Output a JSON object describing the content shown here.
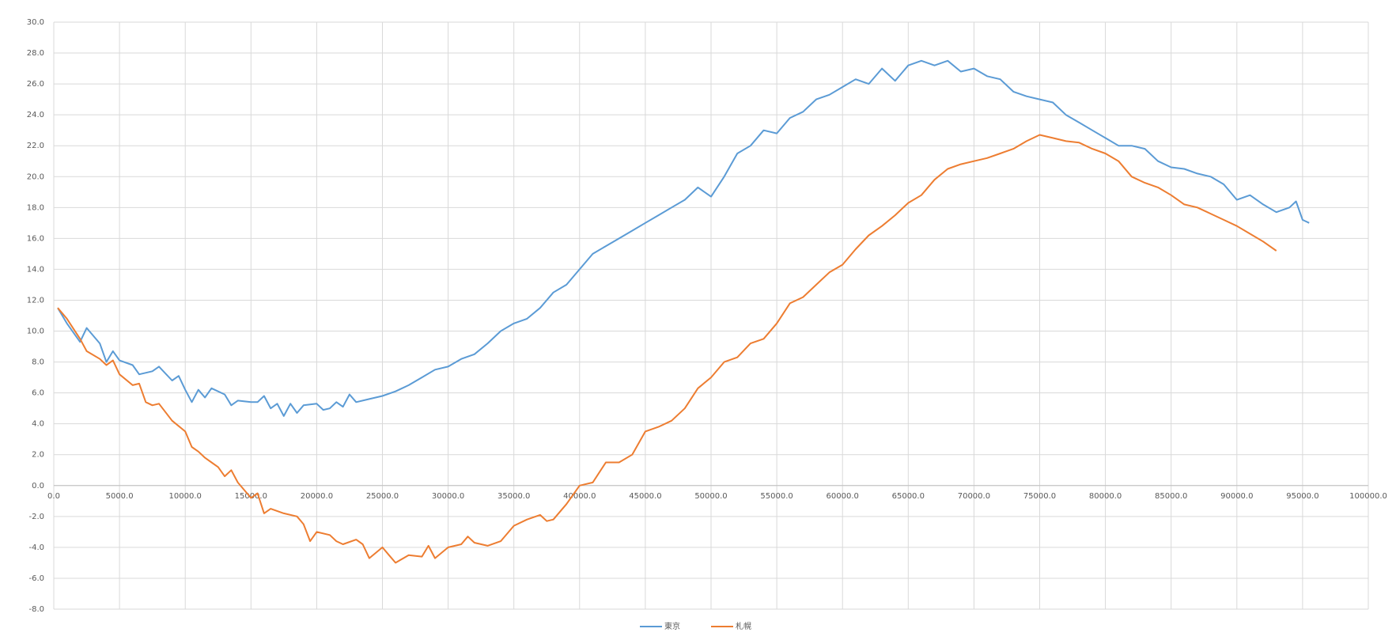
{
  "chart_data": {
    "type": "line",
    "xlim": [
      0,
      100000
    ],
    "ylim": [
      -8,
      30
    ],
    "xticks": [
      {
        "value": 0,
        "label": "0.0"
      },
      {
        "value": 5000,
        "label": "5000.0"
      },
      {
        "value": 10000,
        "label": "10000.0"
      },
      {
        "value": 15000,
        "label": "15000.0"
      },
      {
        "value": 20000,
        "label": "20000.0"
      },
      {
        "value": 25000,
        "label": "25000.0"
      },
      {
        "value": 30000,
        "label": "30000.0"
      },
      {
        "value": 35000,
        "label": "35000.0"
      },
      {
        "value": 40000,
        "label": "40000.0"
      },
      {
        "value": 45000,
        "label": "45000.0"
      },
      {
        "value": 50000,
        "label": "50000.0"
      },
      {
        "value": 55000,
        "label": "55000.0"
      },
      {
        "value": 60000,
        "label": "60000.0"
      },
      {
        "value": 65000,
        "label": "65000.0"
      },
      {
        "value": 70000,
        "label": "70000.0"
      },
      {
        "value": 75000,
        "label": "75000.0"
      },
      {
        "value": 80000,
        "label": "80000.0"
      },
      {
        "value": 85000,
        "label": "85000.0"
      },
      {
        "value": 90000,
        "label": "90000.0"
      },
      {
        "value": 95000,
        "label": "95000.0"
      },
      {
        "value": 100000,
        "label": "100000.0"
      }
    ],
    "yticks": [
      {
        "value": -8,
        "label": "-8.0"
      },
      {
        "value": -6,
        "label": "-6.0"
      },
      {
        "value": -4,
        "label": "-4.0"
      },
      {
        "value": -2,
        "label": "-2.0"
      },
      {
        "value": 0,
        "label": "0.0"
      },
      {
        "value": 2,
        "label": "2.0"
      },
      {
        "value": 4,
        "label": "4.0"
      },
      {
        "value": 6,
        "label": "6.0"
      },
      {
        "value": 8,
        "label": "8.0"
      },
      {
        "value": 10,
        "label": "10.0"
      },
      {
        "value": 12,
        "label": "12.0"
      },
      {
        "value": 14,
        "label": "14.0"
      },
      {
        "value": 16,
        "label": "16.0"
      },
      {
        "value": 18,
        "label": "18.0"
      },
      {
        "value": 20,
        "label": "20.0"
      },
      {
        "value": 22,
        "label": "22.0"
      },
      {
        "value": 24,
        "label": "24.0"
      },
      {
        "value": 26,
        "label": "26.0"
      },
      {
        "value": 28,
        "label": "28.0"
      },
      {
        "value": 30,
        "label": "30.0"
      }
    ],
    "grid": true,
    "legend": "bottom",
    "series": [
      {
        "name": "東京",
        "color": "#5b9bd5",
        "x": [
          300,
          1000,
          2000,
          2500,
          3500,
          4000,
          4500,
          5000,
          6000,
          6500,
          7500,
          8000,
          9000,
          9500,
          10000,
          10500,
          11000,
          11500,
          12000,
          13000,
          13500,
          14000,
          15000,
          15500,
          16000,
          16500,
          17000,
          17500,
          18000,
          18500,
          19000,
          20000,
          20500,
          21000,
          21500,
          22000,
          22500,
          23000,
          24000,
          25000,
          26000,
          27000,
          28000,
          29000,
          30000,
          31000,
          32000,
          33000,
          34000,
          35000,
          36000,
          37000,
          38000,
          39000,
          40000,
          41000,
          42000,
          43000,
          44000,
          45000,
          46000,
          47000,
          48000,
          49000,
          50000,
          51000,
          52000,
          53000,
          54000,
          55000,
          56000,
          57000,
          58000,
          59000,
          60000,
          61000,
          62000,
          63000,
          64000,
          65000,
          66000,
          67000,
          68000,
          69000,
          70000,
          71000,
          72000,
          73000,
          74000,
          75000,
          76000,
          77000,
          78000,
          79000,
          80000,
          81000,
          82000,
          83000,
          84000,
          85000,
          86000,
          87000,
          88000,
          89000,
          90000,
          91000,
          92000,
          93000,
          94000,
          94500,
          95000,
          95500
        ],
        "values": [
          11.5,
          10.5,
          9.3,
          10.2,
          9.2,
          8.0,
          8.7,
          8.1,
          7.8,
          7.2,
          7.4,
          7.7,
          6.8,
          7.1,
          6.2,
          5.4,
          6.2,
          5.7,
          6.3,
          5.9,
          5.2,
          5.5,
          5.4,
          5.4,
          5.8,
          5.0,
          5.3,
          4.5,
          5.3,
          4.7,
          5.2,
          5.3,
          4.9,
          5.0,
          5.4,
          5.1,
          5.9,
          5.4,
          5.6,
          5.8,
          6.1,
          6.5,
          7.0,
          7.5,
          7.7,
          8.2,
          8.5,
          9.2,
          10.0,
          10.5,
          10.8,
          11.5,
          12.5,
          13.0,
          14.0,
          15.0,
          15.5,
          16.0,
          16.5,
          17.0,
          17.5,
          18.0,
          18.5,
          19.3,
          18.7,
          20.0,
          21.5,
          22.0,
          23.0,
          22.8,
          23.8,
          24.2,
          25.0,
          25.3,
          25.8,
          26.3,
          26.0,
          27.0,
          26.2,
          27.2,
          27.5,
          27.2,
          27.5,
          26.8,
          27.0,
          26.5,
          26.3,
          25.5,
          25.2,
          25.0,
          24.8,
          24.0,
          23.5,
          23.0,
          22.5,
          22.0,
          22.0,
          21.8,
          21.0,
          20.6,
          20.5,
          20.2,
          20.0,
          19.5,
          18.5,
          18.8,
          18.2,
          17.7,
          18.0,
          18.4,
          17.2,
          17.0
        ]
      },
      {
        "name": "札幌",
        "color": "#ed7d31",
        "x": [
          300,
          1000,
          2000,
          2500,
          3500,
          4000,
          4500,
          5000,
          6000,
          6500,
          7000,
          7500,
          8000,
          9000,
          10000,
          10500,
          11000,
          11500,
          12000,
          12500,
          13000,
          13500,
          14000,
          14500,
          15000,
          15500,
          16000,
          16500,
          17500,
          18500,
          19000,
          19500,
          20000,
          21000,
          21500,
          22000,
          23000,
          23500,
          24000,
          25000,
          25500,
          26000,
          27000,
          28000,
          28500,
          29000,
          30000,
          31000,
          31500,
          32000,
          33000,
          34000,
          35000,
          36000,
          37000,
          37500,
          38000,
          39000,
          40000,
          41000,
          42000,
          43000,
          44000,
          45000,
          46000,
          47000,
          48000,
          49000,
          50000,
          51000,
          52000,
          53000,
          54000,
          55000,
          56000,
          57000,
          58000,
          59000,
          60000,
          61000,
          62000,
          63000,
          64000,
          65000,
          66000,
          67000,
          68000,
          69000,
          70000,
          71000,
          72000,
          73000,
          74000,
          75000,
          76000,
          77000,
          78000,
          79000,
          80000,
          81000,
          82000,
          83000,
          84000,
          85000,
          86000,
          87000,
          88000,
          89000,
          90000,
          91000,
          92000,
          93000
        ],
        "values": [
          11.5,
          10.8,
          9.5,
          8.7,
          8.2,
          7.8,
          8.1,
          7.2,
          6.5,
          6.6,
          5.4,
          5.2,
          5.3,
          4.2,
          3.5,
          2.5,
          2.2,
          1.8,
          1.5,
          1.2,
          0.6,
          1.0,
          0.2,
          -0.3,
          -0.8,
          -0.5,
          -1.8,
          -1.5,
          -1.8,
          -2.0,
          -2.5,
          -3.6,
          -3.0,
          -3.2,
          -3.6,
          -3.8,
          -3.5,
          -3.8,
          -4.7,
          -4.0,
          -4.5,
          -5.0,
          -4.5,
          -4.6,
          -3.9,
          -4.7,
          -4.0,
          -3.8,
          -3.3,
          -3.7,
          -3.9,
          -3.6,
          -2.6,
          -2.2,
          -1.9,
          -2.3,
          -2.2,
          -1.2,
          0.0,
          0.2,
          1.5,
          1.5,
          2.0,
          3.5,
          3.8,
          4.2,
          5.0,
          6.3,
          7.0,
          8.0,
          8.3,
          9.2,
          9.5,
          10.5,
          11.8,
          12.2,
          13.0,
          13.8,
          14.3,
          15.3,
          16.2,
          16.8,
          17.5,
          18.3,
          18.8,
          19.8,
          20.5,
          20.8,
          21.0,
          21.2,
          21.5,
          21.8,
          22.3,
          22.7,
          22.5,
          22.3,
          22.2,
          21.8,
          21.5,
          21.0,
          20.0,
          19.6,
          19.3,
          18.8,
          18.2,
          18.0,
          17.6,
          17.2,
          16.8,
          16.3,
          15.8,
          15.2
        ]
      }
    ]
  }
}
